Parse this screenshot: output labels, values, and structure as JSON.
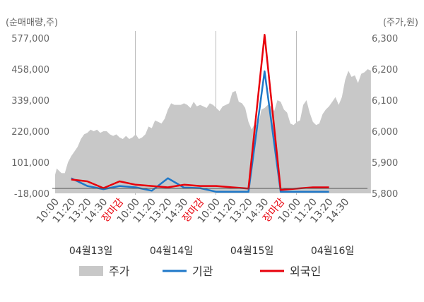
{
  "chart_data": {
    "type": "line",
    "left_axis_unit": "(순매매량,주)",
    "right_axis_unit": "(주가,원)",
    "left_ticks": [
      "577,000",
      "458,000",
      "339,000",
      "220,000",
      "101,000",
      "-18,000"
    ],
    "left_tick_values": [
      577000,
      458000,
      339000,
      220000,
      101000,
      -18000
    ],
    "left_ylim": [
      -18000,
      577000
    ],
    "right_ticks": [
      "6,300",
      "6,200",
      "6,100",
      "6,000",
      "5,900",
      "5,800"
    ],
    "right_tick_values": [
      6300,
      6200,
      6100,
      6000,
      5900,
      5800
    ],
    "right_ylim": [
      5800,
      6300
    ],
    "x_tick_labels": [
      "10:00",
      "11:20",
      "13:20",
      "14:30",
      "장마감",
      "10:00",
      "11:20",
      "13:20",
      "14:30",
      "장마감",
      "10:00",
      "11:20",
      "13:20",
      "14:30",
      "장마감",
      "10:00",
      "11:20",
      "13:20",
      "14:30"
    ],
    "close_label": "장마감",
    "dates": [
      "04월13일",
      "04월14일",
      "04월15일",
      "04월16일"
    ],
    "legend": [
      {
        "name": "주가",
        "color": "#c8c8c8",
        "kind": "area"
      },
      {
        "name": "기관",
        "color": "#1f78c8",
        "kind": "line"
      },
      {
        "name": "외국인",
        "color": "#e8000b",
        "kind": "line"
      }
    ],
    "price_series": {
      "name": "주가",
      "x": [
        0,
        0.1,
        0.2,
        0.3,
        0.4,
        0.6,
        0.8,
        1.0,
        1.2,
        1.4,
        1.6,
        1.8,
        2.0,
        2.2,
        2.4,
        2.6,
        2.8,
        3.0,
        3.2,
        3.4,
        3.6,
        3.8,
        4.0,
        4.2,
        4.4,
        4.6,
        4.8,
        5.0,
        5.2,
        5.4,
        5.6,
        5.8,
        6.0,
        6.2,
        6.4,
        6.6,
        6.8,
        7.0,
        7.2,
        7.4,
        7.6,
        7.8,
        8.0,
        8.2,
        8.4,
        8.6,
        8.8,
        9.0,
        9.2,
        9.4,
        9.6,
        9.8,
        10.0,
        10.2,
        10.4,
        10.6,
        10.8,
        11.0,
        11.2,
        11.4,
        11.6,
        11.8,
        12.0,
        12.2,
        12.4,
        12.6,
        12.8,
        13.0,
        13.2,
        13.4,
        13.6,
        13.8,
        14.0,
        14.2,
        14.4,
        14.6,
        14.8,
        15.0,
        15.2,
        15.4,
        15.6,
        15.8,
        16.0,
        16.2,
        16.4,
        16.6,
        16.8,
        17.0,
        17.2,
        17.4,
        17.6,
        17.8,
        18.0,
        18.2,
        18.4,
        18.6,
        18.8,
        19.0,
        19.2,
        19.4,
        19.6
      ],
      "values": [
        5860,
        5880,
        5875,
        5870,
        5865,
        5865,
        5900,
        5920,
        5935,
        5950,
        5975,
        5990,
        5995,
        6005,
        6000,
        6005,
        5995,
        6000,
        6000,
        5990,
        5985,
        5990,
        5980,
        5975,
        5985,
        5975,
        5980,
        5990,
        5975,
        5980,
        5990,
        6015,
        6010,
        6035,
        6030,
        6025,
        6040,
        6070,
        6090,
        6085,
        6085,
        6085,
        6090,
        6085,
        6075,
        6095,
        6080,
        6085,
        6080,
        6075,
        6090,
        6085,
        6075,
        6065,
        6080,
        6085,
        6090,
        6125,
        6130,
        6095,
        6090,
        6075,
        6030,
        6005,
        6025,
        6015,
        6070,
        6075,
        6085,
        6080,
        6065,
        6100,
        6095,
        6070,
        6060,
        6025,
        6020,
        6030,
        6035,
        6085,
        6100,
        6060,
        6030,
        6020,
        6025,
        6055,
        6070,
        6080,
        6095,
        6110,
        6085,
        6110,
        6165,
        6195,
        6175,
        6180,
        6155,
        6185,
        6190,
        6200,
        6195
      ],
      "x_end": 19.6
    },
    "series": [
      {
        "name": "기관",
        "x": [
          1,
          2,
          3,
          4,
          5,
          6,
          7,
          8,
          9,
          10,
          11,
          12,
          13,
          14,
          15,
          16,
          17
        ],
        "values": [
          40000,
          10000,
          -2000,
          10000,
          5000,
          -8000,
          40000,
          4000,
          2000,
          -12000,
          -12000,
          -12000,
          450000,
          -12000,
          -12000,
          -12000,
          -12000
        ]
      },
      {
        "name": "외국인",
        "x": [
          1,
          2,
          3,
          4,
          5,
          6,
          7,
          8,
          9,
          10,
          11,
          12,
          13,
          14,
          15,
          16,
          17
        ],
        "values": [
          35000,
          28000,
          2000,
          28000,
          15000,
          10000,
          5000,
          15000,
          10000,
          10000,
          5000,
          0,
          590000,
          -5000,
          0,
          5000,
          5000
        ]
      }
    ]
  }
}
